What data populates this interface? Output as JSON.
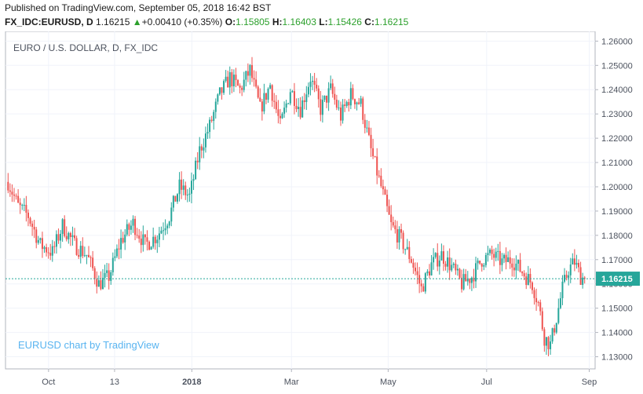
{
  "header": {
    "published": "Published on TradingView.com, September 05, 2018 16:42 BST",
    "symbol": "FX_IDC:EURUSD, D",
    "last": "1.16215",
    "change_arrow": "▲",
    "change": "+0.00410 (+0.35%)",
    "o_label": "O:",
    "o_value": "1.15805",
    "h_label": "H:",
    "h_value": "1.16403",
    "l_label": "L:",
    "l_value": "1.15426",
    "c_label": "C:",
    "c_value": "1.16215"
  },
  "colors": {
    "up": "#26a69a",
    "down": "#ef5350",
    "grid": "#f0f3fa",
    "axis": "#b2b5be",
    "price_line": "#26a69a",
    "watermark": "#59b4f0"
  },
  "chart_data": {
    "type": "candlestick",
    "title": "EURO / U.S. DOLLAR, D, FX_IDC",
    "watermark": "EURUSD chart by TradingView",
    "last_price": "1.16215",
    "y_ticks": [
      1.13,
      1.14,
      1.15,
      1.16,
      1.17,
      1.18,
      1.19,
      1.2,
      1.21,
      1.22,
      1.23,
      1.24,
      1.25,
      1.26
    ],
    "ylim": [
      1.125,
      1.264
    ],
    "x_ticks": [
      {
        "label": "Oct",
        "pos": 0.073
      },
      {
        "label": "13",
        "pos": 0.185
      },
      {
        "label": "2018",
        "pos": 0.316
      },
      {
        "label": "Mar",
        "pos": 0.485
      },
      {
        "label": "May",
        "pos": 0.649
      },
      {
        "label": "Jul",
        "pos": 0.816
      },
      {
        "label": "Sep",
        "pos": 0.99
      }
    ],
    "grid": true,
    "anchors": [
      [
        0,
        1.202
      ],
      [
        5,
        1.192
      ],
      [
        10,
        1.188
      ],
      [
        16,
        1.176
      ],
      [
        22,
        1.173
      ],
      [
        27,
        1.184
      ],
      [
        33,
        1.176
      ],
      [
        39,
        1.172
      ],
      [
        45,
        1.16
      ],
      [
        50,
        1.163
      ],
      [
        56,
        1.178
      ],
      [
        62,
        1.185
      ],
      [
        68,
        1.176
      ],
      [
        74,
        1.18
      ],
      [
        80,
        1.188
      ],
      [
        85,
        1.2
      ],
      [
        90,
        1.196
      ],
      [
        95,
        1.215
      ],
      [
        100,
        1.225
      ],
      [
        105,
        1.238
      ],
      [
        110,
        1.245
      ],
      [
        115,
        1.24
      ],
      [
        120,
        1.248
      ],
      [
        125,
        1.232
      ],
      [
        130,
        1.242
      ],
      [
        135,
        1.225
      ],
      [
        140,
        1.24
      ],
      [
        145,
        1.232
      ],
      [
        150,
        1.245
      ],
      [
        155,
        1.232
      ],
      [
        160,
        1.24
      ],
      [
        165,
        1.229
      ],
      [
        170,
        1.238
      ],
      [
        175,
        1.234
      ],
      [
        180,
        1.215
      ],
      [
        185,
        1.2
      ],
      [
        190,
        1.184
      ],
      [
        195,
        1.178
      ],
      [
        200,
        1.17
      ],
      [
        205,
        1.158
      ],
      [
        210,
        1.168
      ],
      [
        215,
        1.172
      ],
      [
        220,
        1.167
      ],
      [
        225,
        1.16
      ],
      [
        230,
        1.163
      ],
      [
        235,
        1.17
      ],
      [
        240,
        1.172
      ],
      [
        245,
        1.169
      ],
      [
        250,
        1.17
      ],
      [
        255,
        1.165
      ],
      [
        260,
        1.16
      ],
      [
        263,
        1.152
      ],
      [
        266,
        1.138
      ],
      [
        269,
        1.135
      ],
      [
        272,
        1.146
      ],
      [
        275,
        1.158
      ],
      [
        278,
        1.166
      ],
      [
        281,
        1.169
      ],
      [
        284,
        1.163
      ],
      [
        286,
        1.162
      ]
    ]
  }
}
